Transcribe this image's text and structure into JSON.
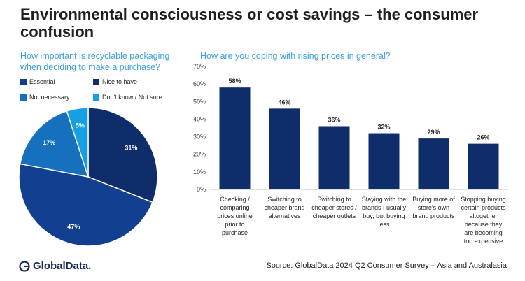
{
  "title": "Environmental consciousness or cost savings – the consumer confusion",
  "footer": {
    "logo_text": "GlobalData.",
    "source": "Source: GlobalData 2024 Q2 Consumer Survey – Asia and Australasia"
  },
  "colors": {
    "navy": "#0f2d6b",
    "dark_blue": "#123f8f",
    "mid_blue": "#1670bd",
    "light_blue": "#16a0e3",
    "subtitle": "#3aa0e0"
  },
  "chart_data": [
    {
      "type": "pie",
      "title": "How important is recyclable packaging when deciding to make a purchase?",
      "legend_position": "top",
      "slices": [
        {
          "name": "Essential",
          "value": 47,
          "label": "47%",
          "color": "#123f8f"
        },
        {
          "name": "Nice to have",
          "value": 31,
          "label": "31%",
          "color": "#0f2d6b"
        },
        {
          "name": "Not necessary",
          "value": 17,
          "label": "17%",
          "color": "#1670bd"
        },
        {
          "name": "Don't know / Not sure",
          "value": 5,
          "label": "5%",
          "color": "#16a0e3"
        }
      ]
    },
    {
      "type": "bar",
      "title": "How are you coping with rising prices in general?",
      "categories": [
        "Checking / comparing prices online prior to purchase",
        "Switching to cheaper brand alternatives",
        "Switching to cheaper stores / cheaper outlets",
        "Staying with the brands I usually buy, but buying less",
        "Buying more of store's own brand products",
        "Stopping buying certain products altogether because they are becoming too expensive"
      ],
      "category_lines": [
        [
          "Checking /",
          "comparing",
          "prices online",
          "prior to",
          "purchase"
        ],
        [
          "Switching to",
          "cheaper brand",
          "alternatives"
        ],
        [
          "Switching to",
          "cheaper stores /",
          "cheaper outlets"
        ],
        [
          "Staying with the",
          "brands I usually",
          "buy, but buying",
          "less"
        ],
        [
          "Buying more of",
          "store's own",
          "brand products"
        ],
        [
          "Stopping buying",
          "certain products",
          "altogether",
          "because they",
          "are becoming",
          "too expensive"
        ]
      ],
      "values": [
        58,
        46,
        36,
        32,
        29,
        26
      ],
      "data_labels": [
        "58%",
        "46%",
        "36%",
        "32%",
        "29%",
        "26%"
      ],
      "ylim": [
        0,
        70
      ],
      "yticks": [
        "0%",
        "10%",
        "20%",
        "30%",
        "40%",
        "50%",
        "60%",
        "70%"
      ],
      "color": "#0f2d6b",
      "grid": false
    }
  ]
}
